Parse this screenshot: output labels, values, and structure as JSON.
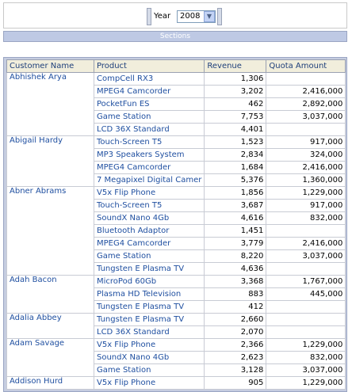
{
  "prompt": {
    "year_label": "Year",
    "year_value": "2008"
  },
  "sections_label": "Sections",
  "table": {
    "headers": [
      "Customer Name",
      "Product",
      "Revenue",
      "Quota Amount"
    ],
    "groups": [
      {
        "customer": "Abhishek Arya",
        "rows": [
          {
            "product": "CompCell RX3",
            "revenue": "1,306",
            "quota": ""
          },
          {
            "product": "MPEG4 Camcorder",
            "revenue": "3,202",
            "quota": "2,416,000"
          },
          {
            "product": "PocketFun ES",
            "revenue": "462",
            "quota": "2,892,000"
          },
          {
            "product": "Game Station",
            "revenue": "7,753",
            "quota": "3,037,000"
          },
          {
            "product": "LCD 36X Standard",
            "revenue": "4,401",
            "quota": ""
          }
        ]
      },
      {
        "customer": "Abigail Hardy",
        "rows": [
          {
            "product": "Touch-Screen T5",
            "revenue": "1,523",
            "quota": "917,000"
          },
          {
            "product": "MP3 Speakers System",
            "revenue": "2,834",
            "quota": "324,000"
          },
          {
            "product": "MPEG4 Camcorder",
            "revenue": "1,684",
            "quota": "2,416,000"
          },
          {
            "product": "7 Megapixel Digital Camer",
            "revenue": "5,376",
            "quota": "1,360,000"
          }
        ]
      },
      {
        "customer": "Abner Abrams",
        "rows": [
          {
            "product": "V5x Flip Phone",
            "revenue": "1,856",
            "quota": "1,229,000"
          },
          {
            "product": "Touch-Screen T5",
            "revenue": "3,687",
            "quota": "917,000"
          },
          {
            "product": "SoundX Nano 4Gb",
            "revenue": "4,616",
            "quota": "832,000"
          },
          {
            "product": "Bluetooth Adaptor",
            "revenue": "1,451",
            "quota": ""
          },
          {
            "product": "MPEG4 Camcorder",
            "revenue": "3,779",
            "quota": "2,416,000"
          },
          {
            "product": "Game Station",
            "revenue": "8,220",
            "quota": "3,037,000"
          },
          {
            "product": "Tungsten E Plasma TV",
            "revenue": "4,636",
            "quota": ""
          }
        ]
      },
      {
        "customer": "Adah Bacon",
        "rows": [
          {
            "product": "MicroPod 60Gb",
            "revenue": "3,368",
            "quota": "1,767,000"
          },
          {
            "product": "Plasma HD Television",
            "revenue": "883",
            "quota": "445,000"
          },
          {
            "product": "Tungsten E Plasma TV",
            "revenue": "412",
            "quota": ""
          }
        ]
      },
      {
        "customer": "Adalia Abbey",
        "rows": [
          {
            "product": "Tungsten E Plasma TV",
            "revenue": "2,660",
            "quota": ""
          },
          {
            "product": "LCD 36X Standard",
            "revenue": "2,070",
            "quota": ""
          }
        ]
      },
      {
        "customer": "Adam Savage",
        "rows": [
          {
            "product": "V5x Flip Phone",
            "revenue": "2,366",
            "quota": "1,229,000"
          },
          {
            "product": "SoundX Nano 4Gb",
            "revenue": "2,623",
            "quota": "832,000"
          },
          {
            "product": "Game Station",
            "revenue": "3,128",
            "quota": "3,037,000"
          }
        ]
      },
      {
        "customer": "Addison Hurd",
        "rows": [
          {
            "product": "V5x Flip Phone",
            "revenue": "905",
            "quota": "1,229,000"
          }
        ]
      }
    ]
  }
}
